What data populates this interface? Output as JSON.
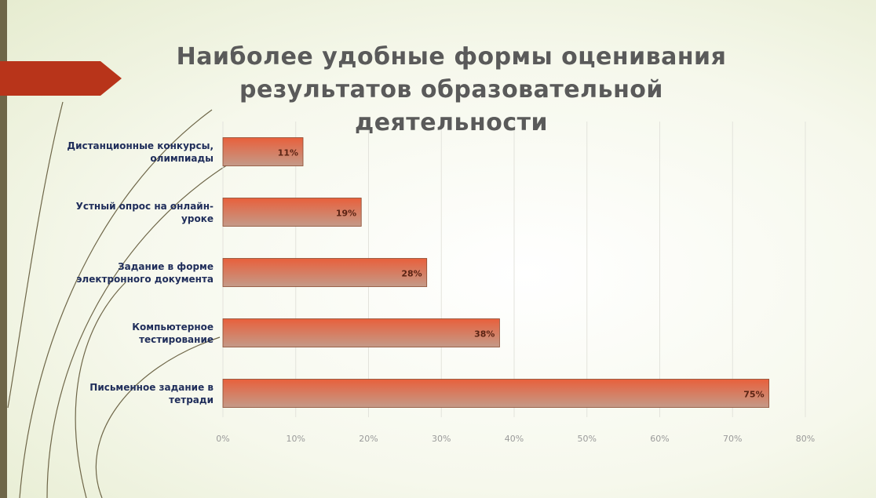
{
  "chart_data": {
    "type": "barh",
    "title": "Наиболее удобные формы оценивания результатов образовательной деятельности",
    "categories": [
      "Дистанционные конкурсы, олимпиады",
      "Устный опрос на онлайн-уроке",
      "Задание в форме электронного документа",
      "Компьютерное тестирование",
      "Письменное задание в тетради"
    ],
    "values": [
      11,
      19,
      28,
      38,
      75
    ],
    "value_labels": [
      "11%",
      "19%",
      "28%",
      "38%",
      "75%"
    ],
    "color": "#e8603c",
    "xlim": [
      0,
      80
    ],
    "xticks": [
      {
        "value": 0,
        "label": "0%"
      },
      {
        "value": 10,
        "label": "10%"
      },
      {
        "value": 20,
        "label": "20%"
      },
      {
        "value": 30,
        "label": "30%"
      },
      {
        "value": 40,
        "label": "40%"
      },
      {
        "value": 50,
        "label": "50%"
      },
      {
        "value": 60,
        "label": "60%"
      },
      {
        "value": 70,
        "label": "70%"
      },
      {
        "value": 80,
        "label": "80%"
      }
    ],
    "grid": true
  }
}
